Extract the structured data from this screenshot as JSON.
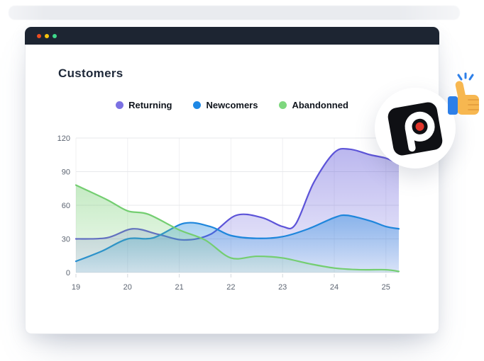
{
  "window": {
    "traffic_lights": [
      "#ed4c20",
      "#f6c50e",
      "#3ed98a"
    ]
  },
  "header": {
    "title": "Customers"
  },
  "chart_data": {
    "type": "area",
    "title": "Customers",
    "xlabel": "",
    "ylabel": "",
    "x_ticks": [
      "19",
      "20",
      "21",
      "22",
      "23",
      "24",
      "25"
    ],
    "x_tick_values": [
      19,
      20,
      21,
      22,
      23,
      24,
      25
    ],
    "y_ticks": [
      "0",
      "30",
      "60",
      "90",
      "120"
    ],
    "y_tick_values": [
      0,
      30,
      60,
      90,
      120
    ],
    "xlim": [
      19,
      25.25
    ],
    "ylim": [
      0,
      120
    ],
    "grid": true,
    "legend_position": "top-center",
    "series": [
      {
        "name": "Returning",
        "legend_color": "#7B71E3",
        "stroke": "#5D54D8",
        "points": [
          [
            19,
            30
          ],
          [
            19.6,
            31
          ],
          [
            20.1,
            39
          ],
          [
            20.6,
            34
          ],
          [
            21.1,
            29
          ],
          [
            21.6,
            34
          ],
          [
            22.1,
            51
          ],
          [
            22.6,
            49
          ],
          [
            23,
            41
          ],
          [
            23.25,
            43
          ],
          [
            23.6,
            80
          ],
          [
            24,
            107
          ],
          [
            24.3,
            110
          ],
          [
            24.7,
            105
          ],
          [
            25,
            102
          ],
          [
            25.25,
            97
          ]
        ]
      },
      {
        "name": "Newcomers",
        "legend_color": "#1E88E5",
        "stroke": "#1E86DC",
        "points": [
          [
            19,
            10
          ],
          [
            19.5,
            19
          ],
          [
            20,
            30
          ],
          [
            20.5,
            31
          ],
          [
            21.1,
            44
          ],
          [
            21.6,
            41
          ],
          [
            22,
            33
          ],
          [
            22.5,
            30.5
          ],
          [
            23,
            32
          ],
          [
            23.5,
            39
          ],
          [
            24,
            49
          ],
          [
            24.25,
            51
          ],
          [
            24.7,
            46
          ],
          [
            25,
            41
          ],
          [
            25.25,
            39
          ]
        ]
      },
      {
        "name": "Abandonned",
        "legend_color": "#7ED77E",
        "stroke": "#74CE71",
        "points": [
          [
            19,
            78
          ],
          [
            19.6,
            65
          ],
          [
            20,
            55
          ],
          [
            20.4,
            52
          ],
          [
            21,
            38
          ],
          [
            21.5,
            29
          ],
          [
            22,
            13
          ],
          [
            22.5,
            14.5
          ],
          [
            23,
            13
          ],
          [
            23.5,
            8
          ],
          [
            24,
            4
          ],
          [
            24.5,
            2.5
          ],
          [
            25,
            2.5
          ],
          [
            25.25,
            1
          ]
        ]
      }
    ]
  },
  "badge": {
    "logo_letter": "p"
  }
}
